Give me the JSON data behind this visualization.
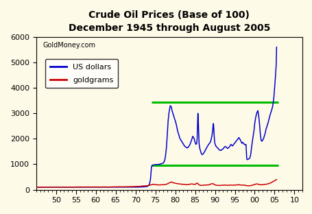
{
  "title": "Crude Oil Prices (Base of 100)",
  "subtitle": "December 1945 through August 2005",
  "watermark": "GoldMoney.com",
  "background_color": "#FEFAE8",
  "xlim": [
    45,
    112
  ],
  "ylim": [
    0,
    6000
  ],
  "yticks": [
    0,
    1000,
    2000,
    3000,
    4000,
    5000,
    6000
  ],
  "xtick_positions": [
    50,
    55,
    60,
    65,
    70,
    75,
    80,
    85,
    90,
    95,
    100,
    105,
    110
  ],
  "xtick_labels": [
    "50",
    "55",
    "60",
    "65",
    "70",
    "75",
    "80",
    "85",
    "90",
    "95",
    "00",
    "05",
    "10"
  ],
  "green_lines": [
    950,
    3450
  ],
  "green_color": "#00BB00",
  "green_xstart": 74.0,
  "green_xend": 106.0,
  "blue_color": "#0000CC",
  "red_color": "#CC0000",
  "legend_labels": [
    "US dollars",
    "goldgrams"
  ],
  "usd_data": [
    [
      45.0,
      100
    ],
    [
      46.0,
      100
    ],
    [
      47.0,
      100
    ],
    [
      48.0,
      100
    ],
    [
      49.0,
      100
    ],
    [
      50.0,
      100
    ],
    [
      51.0,
      100
    ],
    [
      52.0,
      100
    ],
    [
      53.0,
      100
    ],
    [
      54.0,
      100
    ],
    [
      55.0,
      100
    ],
    [
      56.0,
      100
    ],
    [
      57.0,
      100
    ],
    [
      58.0,
      100
    ],
    [
      59.0,
      100
    ],
    [
      60.0,
      100
    ],
    [
      61.0,
      100
    ],
    [
      62.0,
      100
    ],
    [
      63.0,
      100
    ],
    [
      64.0,
      100
    ],
    [
      65.0,
      100
    ],
    [
      66.0,
      100
    ],
    [
      67.0,
      100
    ],
    [
      68.0,
      100
    ],
    [
      69.0,
      100
    ],
    [
      70.0,
      100
    ],
    [
      70.5,
      102
    ],
    [
      71.0,
      105
    ],
    [
      71.5,
      108
    ],
    [
      72.0,
      112
    ],
    [
      72.5,
      118
    ],
    [
      73.0,
      130
    ],
    [
      73.25,
      160
    ],
    [
      73.5,
      220
    ],
    [
      73.75,
      400
    ],
    [
      74.0,
      880
    ],
    [
      74.1,
      940
    ],
    [
      74.2,
      960
    ],
    [
      74.4,
      970
    ],
    [
      74.6,
      975
    ],
    [
      74.8,
      980
    ],
    [
      75.0,
      985
    ],
    [
      75.5,
      990
    ],
    [
      76.0,
      1000
    ],
    [
      76.5,
      1020
    ],
    [
      77.0,
      1050
    ],
    [
      77.2,
      1100
    ],
    [
      77.4,
      1200
    ],
    [
      77.6,
      1400
    ],
    [
      77.8,
      1700
    ],
    [
      78.0,
      2200
    ],
    [
      78.2,
      2700
    ],
    [
      78.4,
      3000
    ],
    [
      78.6,
      3200
    ],
    [
      78.75,
      3300
    ],
    [
      79.0,
      3250
    ],
    [
      79.2,
      3100
    ],
    [
      79.4,
      3000
    ],
    [
      79.6,
      2900
    ],
    [
      79.8,
      2800
    ],
    [
      80.0,
      2700
    ],
    [
      80.2,
      2600
    ],
    [
      80.4,
      2450
    ],
    [
      80.6,
      2300
    ],
    [
      80.8,
      2200
    ],
    [
      81.0,
      2100
    ],
    [
      81.2,
      2000
    ],
    [
      81.4,
      1950
    ],
    [
      81.6,
      1900
    ],
    [
      81.8,
      1850
    ],
    [
      82.0,
      1800
    ],
    [
      82.2,
      1750
    ],
    [
      82.4,
      1700
    ],
    [
      82.6,
      1680
    ],
    [
      82.8,
      1660
    ],
    [
      83.0,
      1640
    ],
    [
      83.2,
      1660
    ],
    [
      83.4,
      1700
    ],
    [
      83.6,
      1750
    ],
    [
      83.8,
      1820
    ],
    [
      84.0,
      1900
    ],
    [
      84.2,
      2000
    ],
    [
      84.4,
      2100
    ],
    [
      84.6,
      2050
    ],
    [
      84.8,
      1980
    ],
    [
      85.0,
      1850
    ],
    [
      85.2,
      1780
    ],
    [
      85.4,
      1820
    ],
    [
      85.5,
      2000
    ],
    [
      85.6,
      2500
    ],
    [
      85.7,
      3000
    ],
    [
      85.75,
      2900
    ],
    [
      85.8,
      2700
    ],
    [
      85.9,
      2200
    ],
    [
      86.0,
      1800
    ],
    [
      86.2,
      1600
    ],
    [
      86.4,
      1500
    ],
    [
      86.6,
      1400
    ],
    [
      86.8,
      1380
    ],
    [
      87.0,
      1400
    ],
    [
      87.2,
      1450
    ],
    [
      87.4,
      1500
    ],
    [
      87.6,
      1560
    ],
    [
      87.8,
      1620
    ],
    [
      88.0,
      1680
    ],
    [
      88.2,
      1730
    ],
    [
      88.4,
      1780
    ],
    [
      88.6,
      1820
    ],
    [
      88.8,
      1860
    ],
    [
      89.0,
      1950
    ],
    [
      89.2,
      2100
    ],
    [
      89.4,
      2300
    ],
    [
      89.5,
      2500
    ],
    [
      89.6,
      2600
    ],
    [
      89.7,
      2400
    ],
    [
      89.8,
      2100
    ],
    [
      89.9,
      1900
    ],
    [
      90.0,
      1800
    ],
    [
      90.2,
      1720
    ],
    [
      90.4,
      1680
    ],
    [
      90.6,
      1650
    ],
    [
      90.8,
      1620
    ],
    [
      91.0,
      1580
    ],
    [
      91.2,
      1550
    ],
    [
      91.4,
      1540
    ],
    [
      91.6,
      1560
    ],
    [
      91.8,
      1580
    ],
    [
      92.0,
      1600
    ],
    [
      92.2,
      1640
    ],
    [
      92.4,
      1680
    ],
    [
      92.6,
      1700
    ],
    [
      92.8,
      1680
    ],
    [
      93.0,
      1640
    ],
    [
      93.2,
      1620
    ],
    [
      93.4,
      1650
    ],
    [
      93.6,
      1680
    ],
    [
      93.8,
      1720
    ],
    [
      94.0,
      1780
    ],
    [
      94.2,
      1750
    ],
    [
      94.4,
      1720
    ],
    [
      94.6,
      1760
    ],
    [
      94.8,
      1800
    ],
    [
      95.0,
      1840
    ],
    [
      95.2,
      1880
    ],
    [
      95.4,
      1920
    ],
    [
      95.6,
      1960
    ],
    [
      95.8,
      2000
    ],
    [
      96.0,
      2050
    ],
    [
      96.2,
      2000
    ],
    [
      96.4,
      1950
    ],
    [
      96.6,
      1880
    ],
    [
      96.8,
      1820
    ],
    [
      97.0,
      1860
    ],
    [
      97.2,
      1820
    ],
    [
      97.4,
      1780
    ],
    [
      97.6,
      1760
    ],
    [
      97.8,
      1780
    ],
    [
      98.0,
      1200
    ],
    [
      98.2,
      1180
    ],
    [
      98.4,
      1200
    ],
    [
      98.6,
      1220
    ],
    [
      98.8,
      1260
    ],
    [
      99.0,
      1400
    ],
    [
      99.2,
      1650
    ],
    [
      99.4,
      1900
    ],
    [
      99.6,
      2100
    ],
    [
      99.8,
      2300
    ],
    [
      100.0,
      2600
    ],
    [
      100.2,
      2800
    ],
    [
      100.4,
      2950
    ],
    [
      100.6,
      3050
    ],
    [
      100.8,
      3100
    ],
    [
      101.0,
      2900
    ],
    [
      101.2,
      2600
    ],
    [
      101.4,
      2200
    ],
    [
      101.6,
      1950
    ],
    [
      101.8,
      1900
    ],
    [
      102.0,
      1950
    ],
    [
      102.2,
      2000
    ],
    [
      102.4,
      2100
    ],
    [
      102.6,
      2200
    ],
    [
      102.8,
      2350
    ],
    [
      103.0,
      2450
    ],
    [
      103.2,
      2550
    ],
    [
      103.4,
      2650
    ],
    [
      103.6,
      2780
    ],
    [
      103.8,
      2900
    ],
    [
      104.0,
      3000
    ],
    [
      104.2,
      3100
    ],
    [
      104.4,
      3200
    ],
    [
      104.6,
      3350
    ],
    [
      104.8,
      3600
    ],
    [
      105.0,
      4000
    ],
    [
      105.2,
      4400
    ],
    [
      105.4,
      4900
    ],
    [
      105.5,
      5600
    ]
  ],
  "gold_data": [
    [
      45.0,
      100
    ],
    [
      46.0,
      100
    ],
    [
      47.0,
      100
    ],
    [
      48.0,
      100
    ],
    [
      49.0,
      100
    ],
    [
      50.0,
      105
    ],
    [
      51.0,
      100
    ],
    [
      52.0,
      100
    ],
    [
      53.0,
      100
    ],
    [
      54.0,
      100
    ],
    [
      55.0,
      105
    ],
    [
      56.0,
      108
    ],
    [
      57.0,
      105
    ],
    [
      58.0,
      108
    ],
    [
      59.0,
      105
    ],
    [
      60.0,
      108
    ],
    [
      61.0,
      105
    ],
    [
      62.0,
      108
    ],
    [
      63.0,
      105
    ],
    [
      64.0,
      110
    ],
    [
      65.0,
      112
    ],
    [
      66.0,
      115
    ],
    [
      67.0,
      115
    ],
    [
      68.0,
      118
    ],
    [
      69.0,
      122
    ],
    [
      70.0,
      128
    ],
    [
      71.0,
      130
    ],
    [
      72.0,
      148
    ],
    [
      73.0,
      158
    ],
    [
      73.5,
      172
    ],
    [
      74.0,
      195
    ],
    [
      74.5,
      215
    ],
    [
      75.0,
      198
    ],
    [
      75.5,
      192
    ],
    [
      76.0,
      188
    ],
    [
      76.5,
      192
    ],
    [
      77.0,
      198
    ],
    [
      77.5,
      202
    ],
    [
      78.0,
      228
    ],
    [
      78.5,
      268
    ],
    [
      79.0,
      305
    ],
    [
      79.5,
      275
    ],
    [
      80.0,
      255
    ],
    [
      80.5,
      238
    ],
    [
      81.0,
      228
    ],
    [
      81.5,
      218
    ],
    [
      82.0,
      212
    ],
    [
      82.5,
      208
    ],
    [
      83.0,
      198
    ],
    [
      83.5,
      208
    ],
    [
      84.0,
      228
    ],
    [
      84.5,
      218
    ],
    [
      85.0,
      208
    ],
    [
      85.5,
      265
    ],
    [
      86.0,
      188
    ],
    [
      86.5,
      168
    ],
    [
      87.0,
      175
    ],
    [
      87.5,
      182
    ],
    [
      88.0,
      188
    ],
    [
      88.5,
      192
    ],
    [
      89.0,
      228
    ],
    [
      89.5,
      238
    ],
    [
      90.0,
      188
    ],
    [
      90.5,
      172
    ],
    [
      91.0,
      168
    ],
    [
      91.5,
      172
    ],
    [
      92.0,
      178
    ],
    [
      92.5,
      182
    ],
    [
      93.0,
      172
    ],
    [
      93.5,
      178
    ],
    [
      94.0,
      182
    ],
    [
      94.5,
      178
    ],
    [
      95.0,
      182
    ],
    [
      95.5,
      188
    ],
    [
      96.0,
      198
    ],
    [
      96.5,
      182
    ],
    [
      97.0,
      182
    ],
    [
      97.5,
      178
    ],
    [
      98.0,
      158
    ],
    [
      98.5,
      152
    ],
    [
      99.0,
      162
    ],
    [
      99.5,
      182
    ],
    [
      100.0,
      208
    ],
    [
      100.5,
      228
    ],
    [
      101.0,
      212
    ],
    [
      101.5,
      192
    ],
    [
      102.0,
      198
    ],
    [
      102.5,
      208
    ],
    [
      103.0,
      218
    ],
    [
      103.5,
      238
    ],
    [
      104.0,
      268
    ],
    [
      104.5,
      308
    ],
    [
      105.0,
      355
    ],
    [
      105.5,
      400
    ]
  ]
}
